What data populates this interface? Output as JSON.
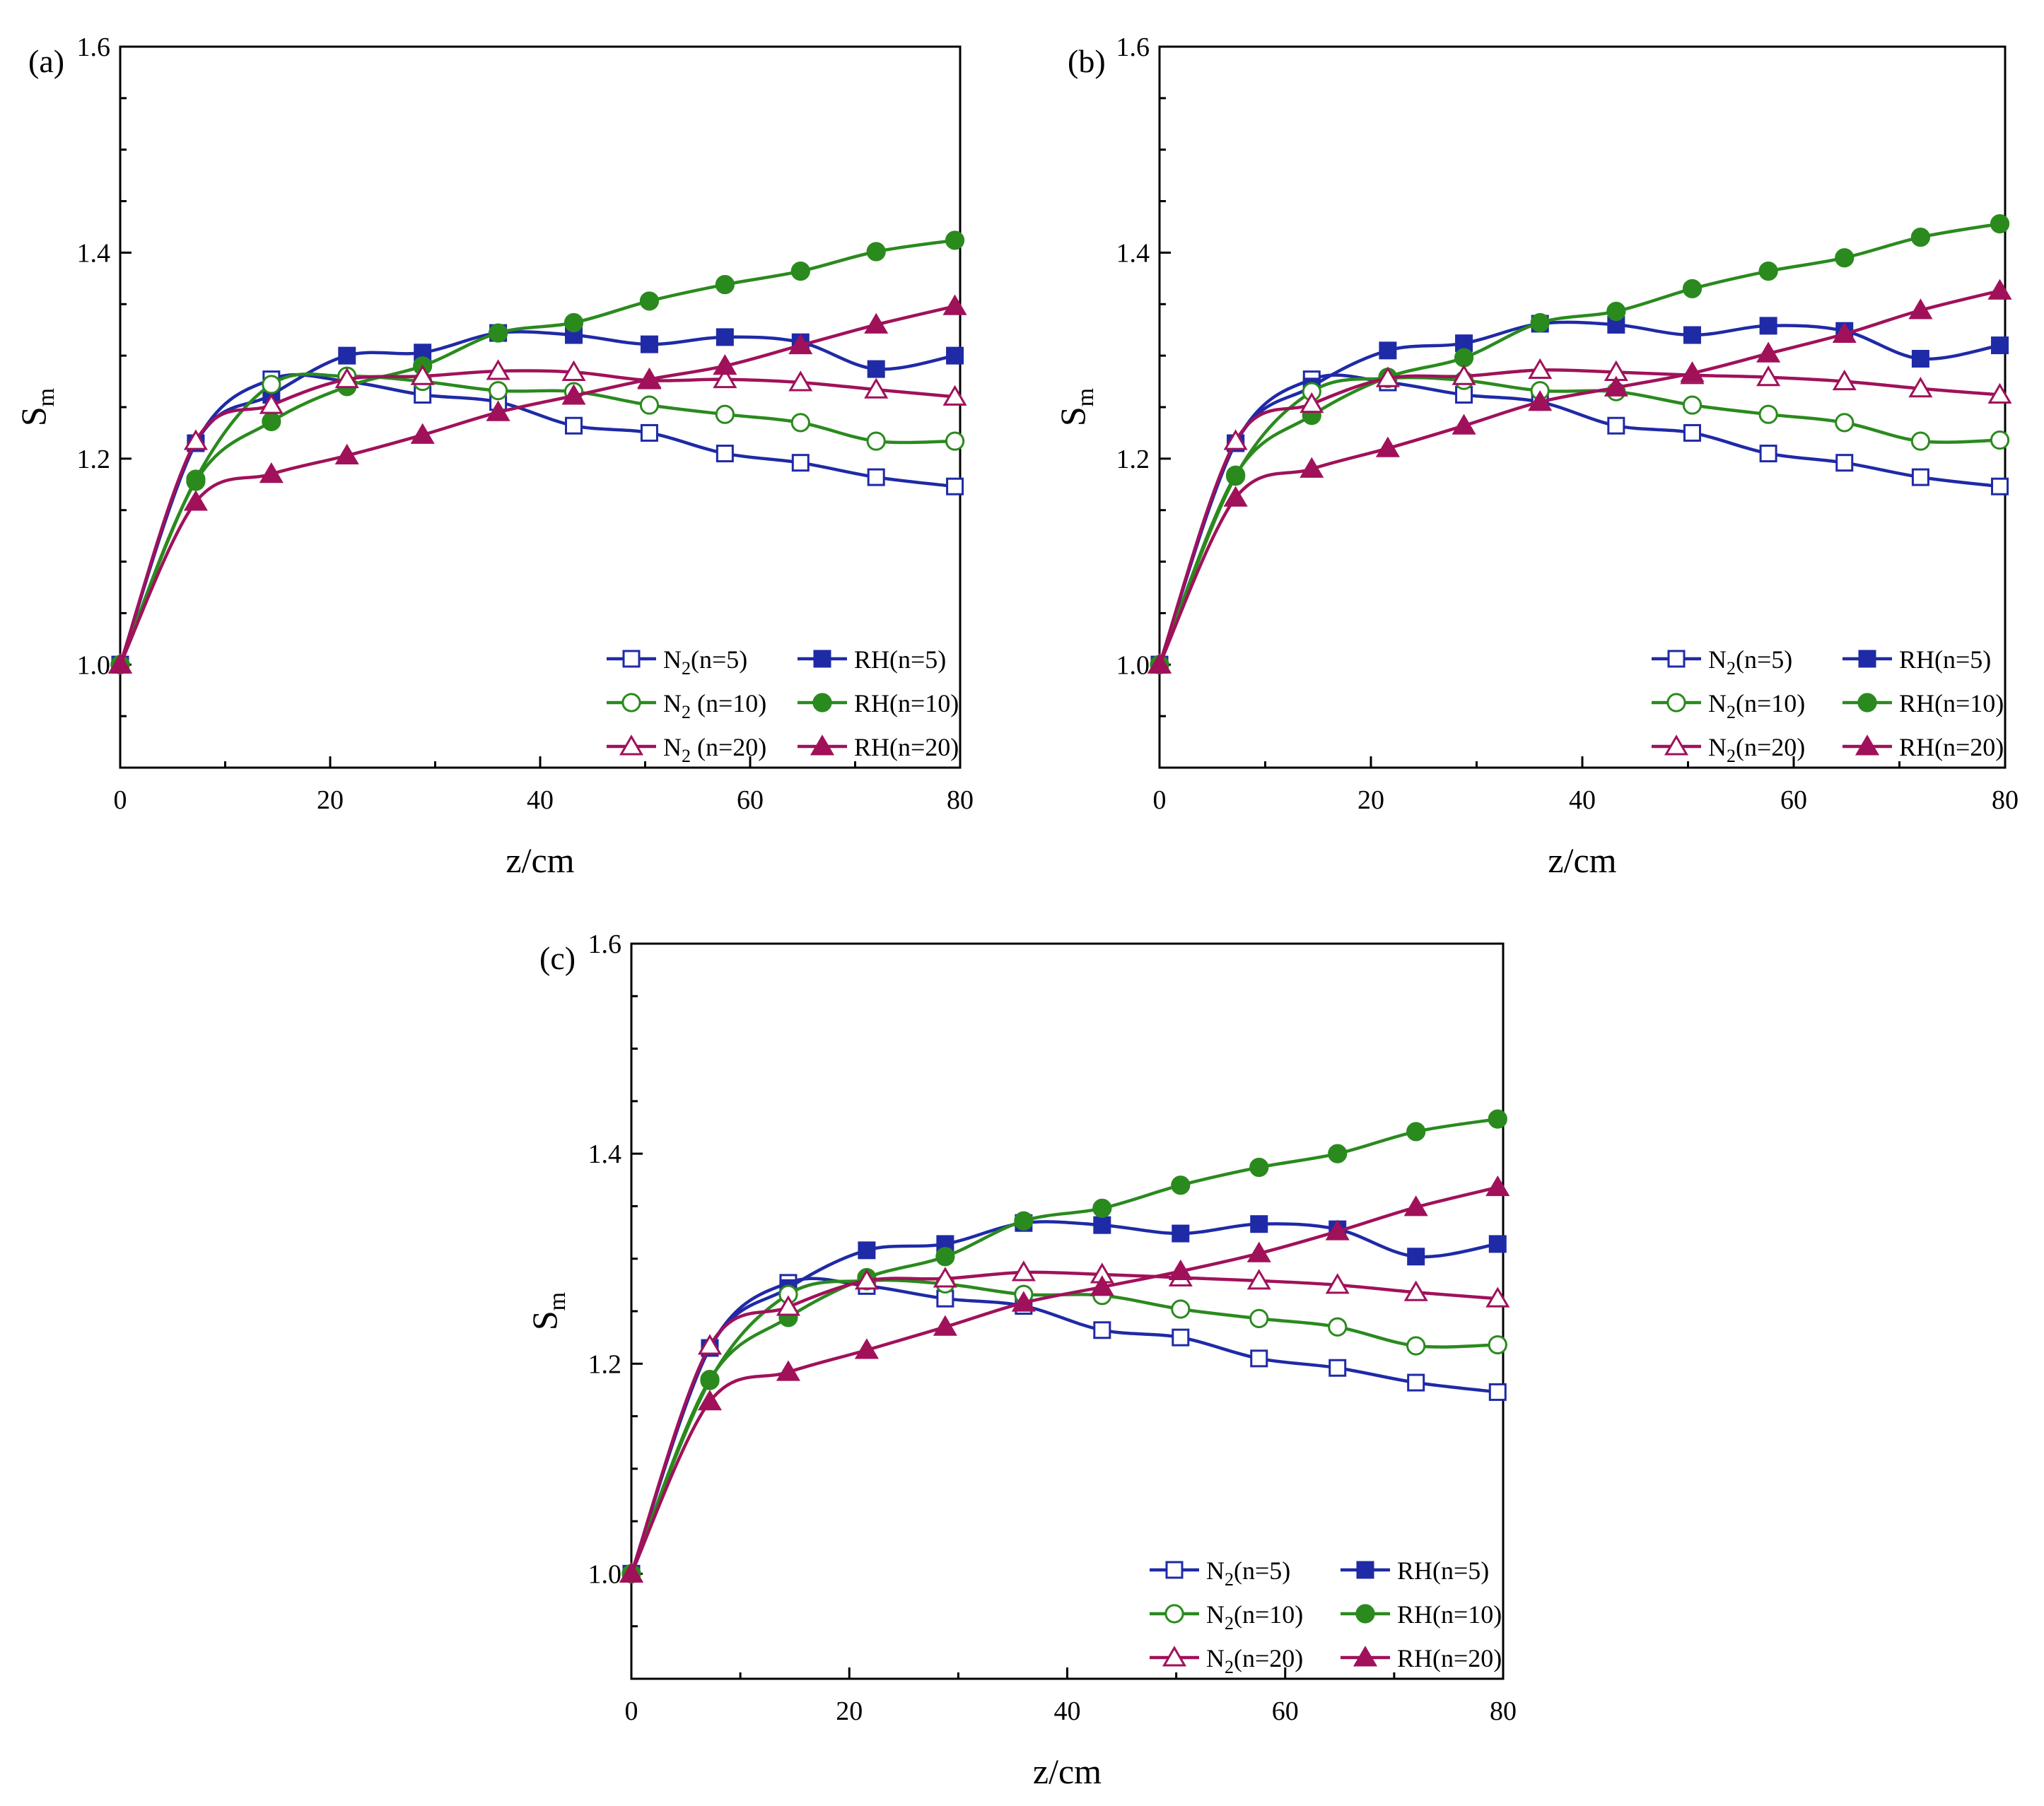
{
  "figure": {
    "panels_label": "Three-panel line chart figure"
  },
  "chart_data": [
    {
      "panel": "(a)",
      "type": "line",
      "xlabel": "z/cm",
      "ylabel": "S",
      "ylabel_sub": "m",
      "xlim": [
        0,
        80
      ],
      "ylim": [
        0.9,
        1.6
      ],
      "xticks": [
        "0",
        "20",
        "40",
        "60",
        "80"
      ],
      "yticks": [
        "1.0",
        "1.2",
        "1.4",
        "1.6"
      ],
      "grid": false,
      "legend_position": "bottom-right",
      "x": [
        0,
        7.2,
        14.4,
        21.6,
        28.8,
        36,
        43.2,
        50.4,
        57.6,
        64.8,
        72,
        79.5
      ],
      "series": [
        {
          "name_main": "N",
          "name_sub": "2",
          "name_tail": "(n=5)",
          "color": "#1f2aa6",
          "marker": "square",
          "filled": false,
          "values": [
            1.0,
            1.215,
            1.277,
            1.275,
            1.262,
            1.255,
            1.232,
            1.225,
            1.205,
            1.196,
            1.182,
            1.173
          ]
        },
        {
          "name_main": "RH",
          "name_sub": "",
          "name_tail": "(n=5)",
          "color": "#1f2aa6",
          "marker": "square",
          "filled": true,
          "values": [
            1.0,
            1.215,
            1.262,
            1.3,
            1.303,
            1.322,
            1.32,
            1.311,
            1.318,
            1.313,
            1.287,
            1.3
          ]
        },
        {
          "name_main": "N",
          "name_sub": "2",
          "name_tail": " (n=10)",
          "color": "#2a8a1e",
          "marker": "circle",
          "filled": false,
          "values": [
            1.0,
            1.18,
            1.272,
            1.28,
            1.275,
            1.266,
            1.265,
            1.252,
            1.243,
            1.235,
            1.217,
            1.217
          ]
        },
        {
          "name_main": "RH",
          "name_sub": "",
          "name_tail": "(n=10)",
          "color": "#2a8a1e",
          "marker": "circle",
          "filled": true,
          "values": [
            1.0,
            1.178,
            1.236,
            1.27,
            1.29,
            1.322,
            1.332,
            1.353,
            1.369,
            1.382,
            1.401,
            1.412
          ]
        },
        {
          "name_main": "N",
          "name_sub": "2",
          "name_tail": " (n=20)",
          "color": "#a0115a",
          "marker": "triangle",
          "filled": false,
          "values": [
            1.0,
            1.217,
            1.252,
            1.277,
            1.28,
            1.285,
            1.284,
            1.276,
            1.277,
            1.274,
            1.267,
            1.26
          ]
        },
        {
          "name_main": "RH",
          "name_sub": "",
          "name_tail": "(n=20)",
          "color": "#a0115a",
          "marker": "triangle",
          "filled": true,
          "values": [
            1.0,
            1.158,
            1.185,
            1.203,
            1.223,
            1.245,
            1.261,
            1.277,
            1.29,
            1.31,
            1.33,
            1.348
          ]
        }
      ]
    },
    {
      "panel": "(b)",
      "type": "line",
      "xlabel": "z/cm",
      "ylabel": "S",
      "ylabel_sub": "m",
      "xlim": [
        0,
        80
      ],
      "ylim": [
        0.9,
        1.6
      ],
      "xticks": [
        "0",
        "20",
        "40",
        "60",
        "80"
      ],
      "yticks": [
        "1.0",
        "1.2",
        "1.4",
        "1.6"
      ],
      "grid": false,
      "legend_position": "bottom-right",
      "x": [
        0,
        7.2,
        14.4,
        21.6,
        28.8,
        36,
        43.2,
        50.4,
        57.6,
        64.8,
        72,
        79.5
      ],
      "series": [
        {
          "name_main": "N",
          "name_sub": "2",
          "name_tail": "(n=5)",
          "color": "#1f2aa6",
          "marker": "square",
          "filled": false,
          "values": [
            1.0,
            1.215,
            1.277,
            1.274,
            1.262,
            1.255,
            1.232,
            1.225,
            1.205,
            1.196,
            1.182,
            1.173
          ]
        },
        {
          "name_main": "RH",
          "name_sub": "",
          "name_tail": "(n=5)",
          "color": "#1f2aa6",
          "marker": "square",
          "filled": true,
          "values": [
            1.0,
            1.215,
            1.27,
            1.305,
            1.312,
            1.331,
            1.33,
            1.32,
            1.329,
            1.324,
            1.297,
            1.31
          ]
        },
        {
          "name_main": "N",
          "name_sub": "2",
          "name_tail": "(n=10)",
          "color": "#2a8a1e",
          "marker": "circle",
          "filled": false,
          "values": [
            1.0,
            1.183,
            1.265,
            1.278,
            1.276,
            1.266,
            1.265,
            1.252,
            1.243,
            1.235,
            1.217,
            1.218
          ]
        },
        {
          "name_main": "RH",
          "name_sub": "",
          "name_tail": "(n=10)",
          "color": "#2a8a1e",
          "marker": "circle",
          "filled": true,
          "values": [
            1.0,
            1.184,
            1.242,
            1.279,
            1.298,
            1.332,
            1.343,
            1.365,
            1.382,
            1.395,
            1.415,
            1.428
          ]
        },
        {
          "name_main": "N",
          "name_sub": "2",
          "name_tail": "(n=20)",
          "color": "#a0115a",
          "marker": "triangle",
          "filled": false,
          "values": [
            1.0,
            1.217,
            1.253,
            1.278,
            1.28,
            1.286,
            1.284,
            1.281,
            1.279,
            1.275,
            1.268,
            1.262
          ]
        },
        {
          "name_main": "RH",
          "name_sub": "",
          "name_tail": "(n=20)",
          "color": "#a0115a",
          "marker": "triangle",
          "filled": true,
          "values": [
            1.0,
            1.162,
            1.19,
            1.21,
            1.232,
            1.255,
            1.269,
            1.283,
            1.302,
            1.321,
            1.344,
            1.363
          ]
        }
      ]
    },
    {
      "panel": "(c)",
      "type": "line",
      "xlabel": "z/cm",
      "ylabel": "S",
      "ylabel_sub": "m",
      "xlim": [
        0,
        80
      ],
      "ylim": [
        0.9,
        1.6
      ],
      "xticks": [
        "0",
        "20",
        "40",
        "60",
        "80"
      ],
      "yticks": [
        "1.0",
        "1.2",
        "1.4",
        "1.6"
      ],
      "grid": false,
      "legend_position": "bottom-right",
      "x": [
        0,
        7.2,
        14.4,
        21.6,
        28.8,
        36,
        43.2,
        50.4,
        57.6,
        64.8,
        72,
        79.5
      ],
      "series": [
        {
          "name_main": "N",
          "name_sub": "2",
          "name_tail": "(n=5)",
          "color": "#1f2aa6",
          "marker": "square",
          "filled": false,
          "values": [
            1.0,
            1.215,
            1.277,
            1.274,
            1.262,
            1.255,
            1.232,
            1.225,
            1.205,
            1.196,
            1.182,
            1.173
          ]
        },
        {
          "name_main": "RH",
          "name_sub": "",
          "name_tail": "(n=5)",
          "color": "#1f2aa6",
          "marker": "square",
          "filled": true,
          "values": [
            1.0,
            1.215,
            1.272,
            1.308,
            1.314,
            1.334,
            1.332,
            1.324,
            1.333,
            1.328,
            1.302,
            1.314
          ]
        },
        {
          "name_main": "N",
          "name_sub": "2",
          "name_tail": "(n=10)",
          "color": "#2a8a1e",
          "marker": "circle",
          "filled": false,
          "values": [
            1.0,
            1.184,
            1.266,
            1.279,
            1.276,
            1.266,
            1.265,
            1.252,
            1.243,
            1.235,
            1.217,
            1.218
          ]
        },
        {
          "name_main": "RH",
          "name_sub": "",
          "name_tail": "(n=10)",
          "color": "#2a8a1e",
          "marker": "circle",
          "filled": true,
          "values": [
            1.0,
            1.185,
            1.244,
            1.282,
            1.302,
            1.336,
            1.348,
            1.37,
            1.387,
            1.4,
            1.421,
            1.433
          ]
        },
        {
          "name_main": "N",
          "name_sub": "2",
          "name_tail": "(n=20)",
          "color": "#a0115a",
          "marker": "triangle",
          "filled": false,
          "values": [
            1.0,
            1.217,
            1.254,
            1.279,
            1.281,
            1.287,
            1.285,
            1.282,
            1.279,
            1.275,
            1.268,
            1.262
          ]
        },
        {
          "name_main": "RH",
          "name_sub": "",
          "name_tail": "(n=20)",
          "color": "#a0115a",
          "marker": "triangle",
          "filled": true,
          "values": [
            1.0,
            1.164,
            1.192,
            1.213,
            1.235,
            1.258,
            1.273,
            1.288,
            1.305,
            1.326,
            1.349,
            1.368
          ]
        }
      ]
    }
  ]
}
